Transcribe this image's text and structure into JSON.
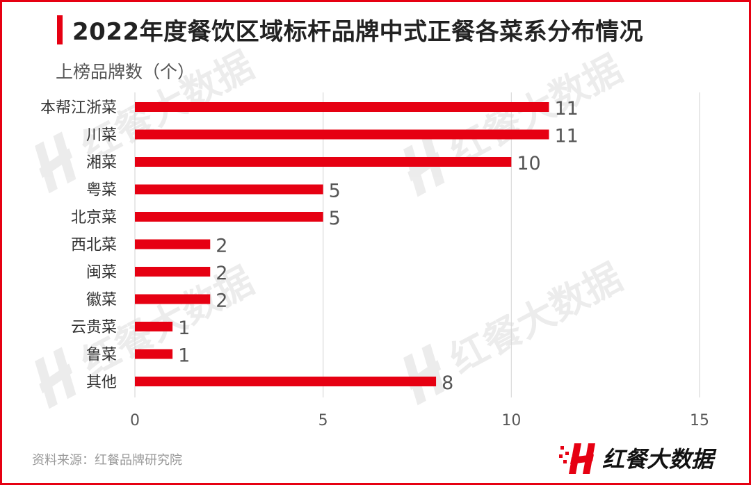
{
  "header": {
    "title": "2022年度餐饮区域标杆品牌中式正餐各菜系分布情况",
    "unit_label": "上榜品牌数（个）"
  },
  "footer": {
    "source": "资料来源：红餐品牌研究院",
    "logo_text": "红餐大数据"
  },
  "watermark_text": "红餐大数据",
  "colors": {
    "bar": "#e60012",
    "grid": "#d9d9d9",
    "text": "#333333",
    "value": "#555555"
  },
  "chart_data": {
    "type": "bar",
    "orientation": "horizontal",
    "categories": [
      "本帮江浙菜",
      "川菜",
      "湘菜",
      "粤菜",
      "北京菜",
      "西北菜",
      "闽菜",
      "徽菜",
      "云贵菜",
      "鲁菜",
      "其他"
    ],
    "values": [
      11,
      11,
      10,
      5,
      5,
      2,
      2,
      2,
      1,
      1,
      8
    ],
    "xlim": [
      0,
      15
    ],
    "xticks": [
      0,
      5,
      10,
      15
    ],
    "grid": true,
    "data_labels": true
  }
}
